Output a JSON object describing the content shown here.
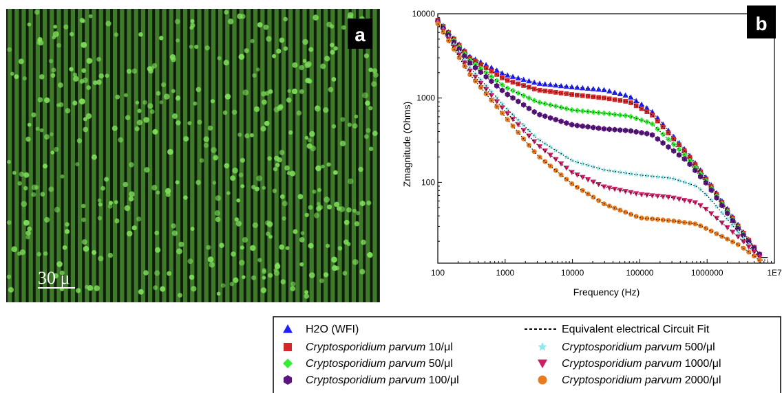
{
  "panel_a": {
    "label": "a",
    "scale_bar_label": "30 μ",
    "stripe_color": "#3f7a2a",
    "gap_color": "#0f1e0b",
    "cell_color": "#7fe05a"
  },
  "chart_data": {
    "type": "scatter",
    "panel_label": "b",
    "xlabel": "Frequency (Hz)",
    "ylabel": "Zmagnitude  (Ohms)",
    "xscale": "log",
    "yscale": "log",
    "xlim": [
      100,
      10000000
    ],
    "ylim": [
      11,
      10000
    ],
    "x_ticks": [
      100,
      1000,
      10000,
      100000,
      1000000,
      10000000
    ],
    "x_tick_labels": [
      "100",
      "1000",
      "10000",
      "100000",
      "1000000",
      "1E7"
    ],
    "y_ticks": [
      100,
      1000,
      10000
    ],
    "y_tick_labels": [
      "100",
      "1000",
      "10000"
    ],
    "legend_position": "bottom",
    "series": [
      {
        "name": "H2O (WFI)",
        "marker": "triangle-up",
        "color": "#1f1fff",
        "x": [
          100,
          300,
          1000,
          3000,
          10000,
          30000,
          70000,
          150000,
          500000,
          1000000,
          3000000,
          6000000
        ],
        "y": [
          8500,
          3100,
          1900,
          1500,
          1350,
          1250,
          1050,
          700,
          230,
          110,
          30,
          14
        ]
      },
      {
        "name": "Cryptosporidium parvum 10/μl",
        "marker": "square",
        "color": "#d62728",
        "x": [
          100,
          300,
          1000,
          3000,
          10000,
          30000,
          70000,
          150000,
          500000,
          1000000,
          3000000,
          6000000
        ],
        "y": [
          8400,
          3000,
          1650,
          1250,
          1100,
          1000,
          900,
          640,
          220,
          105,
          29,
          14
        ]
      },
      {
        "name": "Cryptosporidium parvum 50/μl",
        "marker": "diamond",
        "color": "#33ee33",
        "x": [
          100,
          300,
          1000,
          3000,
          10000,
          30000,
          70000,
          150000,
          500000,
          1000000,
          3000000,
          6000000
        ],
        "y": [
          8300,
          2800,
          1350,
          900,
          720,
          660,
          610,
          500,
          200,
          100,
          28,
          14
        ]
      },
      {
        "name": "Cryptosporidium parvum 100/μl",
        "marker": "hexagon",
        "color": "#5b1580",
        "x": [
          100,
          300,
          1000,
          3000,
          10000,
          30000,
          70000,
          150000,
          500000,
          1000000,
          3000000,
          6000000
        ],
        "y": [
          8200,
          2600,
          1150,
          650,
          480,
          430,
          410,
          370,
          180,
          95,
          27,
          14
        ]
      },
      {
        "name": "Cryptosporidium parvum 500/μl",
        "marker": "star",
        "color": "#8ee8ee",
        "x": [
          100,
          300,
          1000,
          3000,
          10000,
          30000,
          100000,
          300000,
          700000,
          1000000,
          3000000,
          6000000
        ],
        "y": [
          8000,
          2300,
          780,
          330,
          180,
          140,
          122,
          112,
          90,
          70,
          25,
          13
        ]
      },
      {
        "name": "Cryptosporidium parvum 1000/μl",
        "marker": "triangle-down",
        "color": "#cc1f66",
        "x": [
          100,
          300,
          1000,
          3000,
          10000,
          30000,
          100000,
          300000,
          700000,
          1000000,
          3000000,
          6000000
        ],
        "y": [
          7800,
          2100,
          700,
          280,
          130,
          88,
          72,
          66,
          57,
          47,
          22,
          13
        ]
      },
      {
        "name": "Cryptosporidium parvum 2000/μl",
        "marker": "circle",
        "color": "#e87b1e",
        "x": [
          100,
          300,
          1000,
          3000,
          10000,
          30000,
          100000,
          300000,
          700000,
          1000000,
          3000000,
          6000000
        ],
        "y": [
          7600,
          1900,
          600,
          210,
          95,
          55,
          38,
          35,
          32,
          28,
          18,
          12
        ]
      }
    ],
    "fit_series": {
      "name": "Equivalent electrical Circuit Fit",
      "style": "dotted",
      "color": "#000000"
    }
  },
  "legend": {
    "left": [
      {
        "label": "H2O (WFI)",
        "italic": "",
        "suffix": ""
      },
      {
        "label": "",
        "italic": "Cryptosporidium parvum",
        "suffix": " 10/μl"
      },
      {
        "label": "",
        "italic": "Cryptosporidium parvum",
        "suffix": " 50/μl"
      },
      {
        "label": "",
        "italic": "Cryptosporidium parvum",
        "suffix": " 100/μl"
      }
    ],
    "right": [
      {
        "label": "Equivalent electrical Circuit Fit",
        "italic": "",
        "suffix": ""
      },
      {
        "label": "",
        "italic": "Cryptosporidium parvum",
        "suffix": " 500/μl"
      },
      {
        "label": "",
        "italic": "Cryptosporidium parvum",
        "suffix": " 1000/μl"
      },
      {
        "label": "",
        "italic": "Cryptosporidium parvum",
        "suffix": " 2000/μl"
      }
    ]
  }
}
